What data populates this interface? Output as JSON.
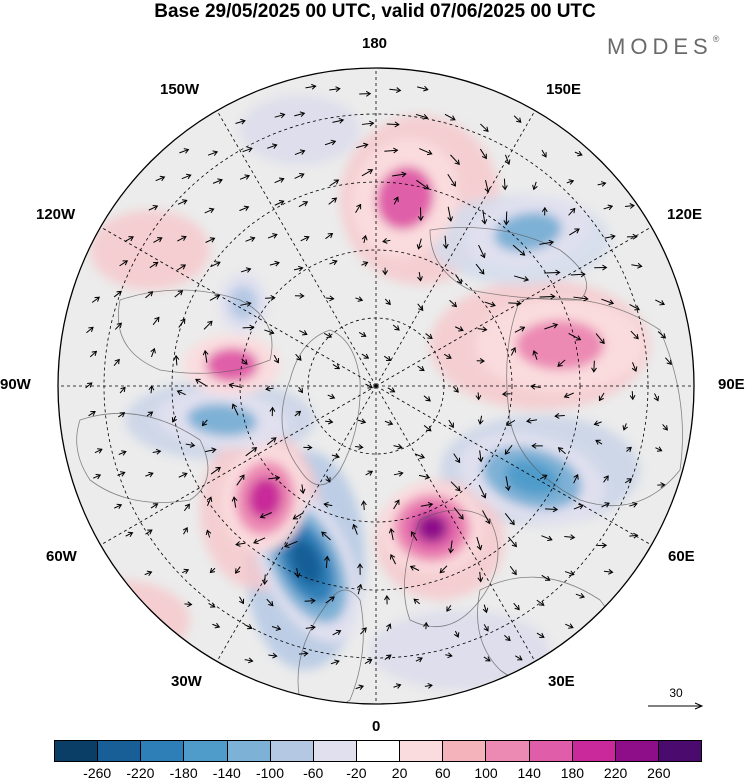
{
  "header": {
    "title": "Base 29/05/2025 00 UTC, valid 07/06/2025 00 UTC",
    "brand": "MODES",
    "brand_mark": "®"
  },
  "map": {
    "projection": "north-polar-stereographic",
    "graticule": "dashed",
    "longitude_labels": [
      "180",
      "150E",
      "120E",
      "90E",
      "60E",
      "30E",
      "0",
      "30W",
      "60W",
      "90W",
      "120W",
      "150W"
    ],
    "anomaly_centers": [
      {
        "sign": "negative",
        "level": -260,
        "region": "North Atlantic, south of Greenland"
      },
      {
        "sign": "positive",
        "level": 220,
        "region": "Scandinavia / Northern Europe"
      },
      {
        "sign": "positive",
        "level": 180,
        "region": "Labrador Sea / Baffin"
      },
      {
        "sign": "negative",
        "level": -180,
        "region": "Central Siberia"
      },
      {
        "sign": "negative",
        "level": -140,
        "region": "Hudson Bay / Canada"
      },
      {
        "sign": "positive",
        "level": 140,
        "region": "Canadian Arctic"
      },
      {
        "sign": "positive",
        "level": 140,
        "region": "East Siberian Sea"
      },
      {
        "sign": "negative",
        "level": -140,
        "region": "Sea of Okhotsk"
      },
      {
        "sign": "positive",
        "level": 100,
        "region": "North-Central Siberia"
      },
      {
        "sign": "negative",
        "level": -100,
        "region": "Alaska / Beaufort"
      }
    ]
  },
  "reference_vector": {
    "label": "30"
  },
  "colorbar": {
    "colors": [
      "#0b3e66",
      "#175f96",
      "#2e7fb8",
      "#4f9ccb",
      "#7eb1d6",
      "#b4c8e4",
      "#e0e0ef",
      "#ffffff",
      "#fadcde",
      "#f4b3bb",
      "#ec8ab4",
      "#e05ea9",
      "#c9299a",
      "#8e0e8a",
      "#4a0a6e"
    ],
    "ticks": [
      "-260",
      "-220",
      "-180",
      "-140",
      "-100",
      "-60",
      "-20",
      "20",
      "60",
      "100",
      "140",
      "180",
      "220",
      "260"
    ]
  }
}
